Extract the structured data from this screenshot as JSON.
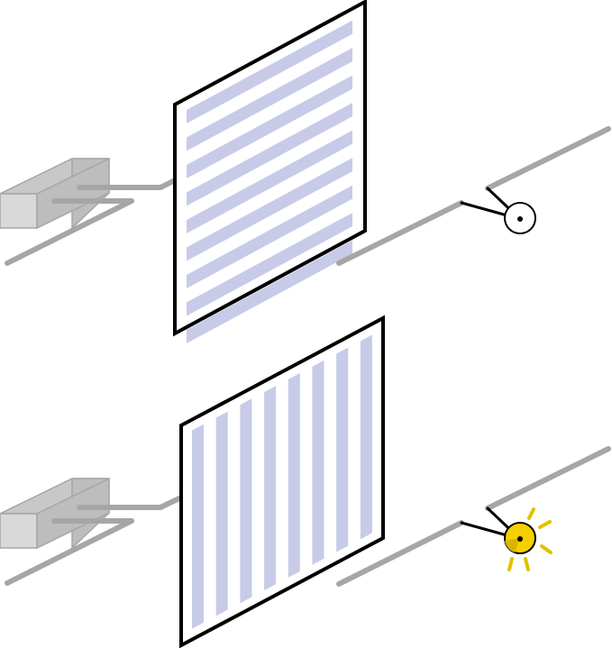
{
  "figure": {
    "panels": [
      {
        "id": "top",
        "filter_orientation": "horizontal",
        "stripe_count": 9,
        "detector_lit": false,
        "detector_color": "#ffffff"
      },
      {
        "id": "bottom",
        "filter_orientation": "vertical",
        "stripe_count": 8,
        "detector_lit": true,
        "detector_color": "#f5d000"
      }
    ],
    "colors": {
      "stripe": "#c7cbe8",
      "wire": "#a6a6a6",
      "frame": "#000000",
      "source_box": "#d9d9d9",
      "glow": "#e0c200"
    },
    "icons": [
      "source-box-icon",
      "polarizer-filter-icon",
      "detector-icon"
    ]
  }
}
